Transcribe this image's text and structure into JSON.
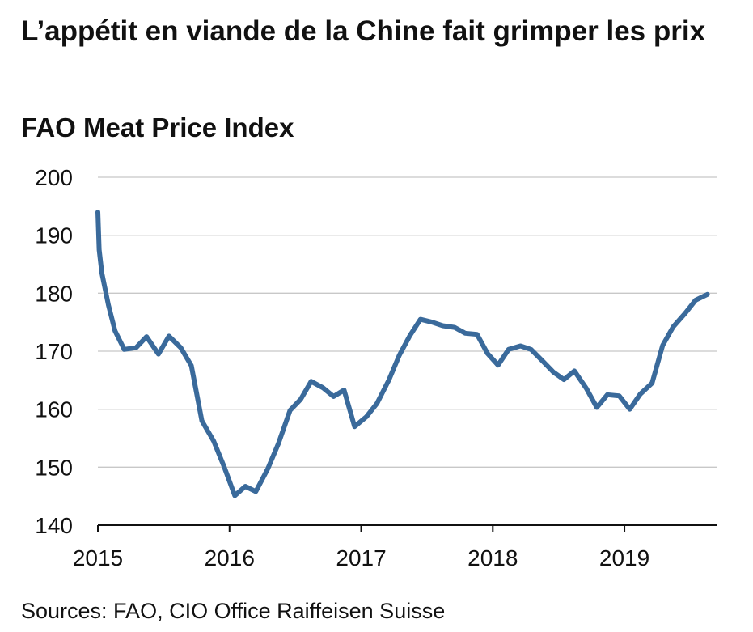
{
  "title": "L’appétit en viande de la Chine fait grimper les prix",
  "subtitle": "FAO Meat Price Index",
  "source": "Sources: FAO, CIO Office Raiffeisen Suisse",
  "chart_data": {
    "type": "line",
    "title": "L’appétit en viande de la Chine fait grimper les prix",
    "subtitle": "FAO Meat Price Index",
    "xlabel": "",
    "ylabel": "",
    "ylim": [
      140,
      200
    ],
    "yticks": [
      140,
      150,
      160,
      170,
      180,
      190,
      200
    ],
    "xlim": [
      2015,
      2019.7
    ],
    "xticks": [
      {
        "value": 2015,
        "label": "2015"
      },
      {
        "value": 2016,
        "label": "2016"
      },
      {
        "value": 2017,
        "label": "2017"
      },
      {
        "value": 2018,
        "label": "2018"
      },
      {
        "value": 2019,
        "label": "2019"
      }
    ],
    "grid": "horizontal",
    "legend": "none",
    "colors": {
      "line": "#3a6a9b",
      "grid": "#c8c8c8",
      "axis": "#111111"
    },
    "series": [
      {
        "points": [
          [
            2015.0,
            194.0
          ],
          [
            2015.01,
            187.5
          ],
          [
            2015.03,
            183.5
          ],
          [
            2015.08,
            178.0
          ],
          [
            2015.13,
            173.5
          ],
          [
            2015.2,
            170.3
          ],
          [
            2015.29,
            170.6
          ],
          [
            2015.37,
            172.5
          ],
          [
            2015.46,
            169.5
          ],
          [
            2015.54,
            172.6
          ],
          [
            2015.63,
            170.6
          ],
          [
            2015.71,
            167.5
          ],
          [
            2015.79,
            158.0
          ],
          [
            2015.88,
            154.5
          ],
          [
            2015.96,
            150.0
          ],
          [
            2016.04,
            145.1
          ],
          [
            2016.12,
            146.7
          ],
          [
            2016.2,
            145.8
          ],
          [
            2016.29,
            149.7
          ],
          [
            2016.37,
            154.0
          ],
          [
            2016.46,
            159.8
          ],
          [
            2016.54,
            161.7
          ],
          [
            2016.62,
            164.8
          ],
          [
            2016.71,
            163.7
          ],
          [
            2016.79,
            162.2
          ],
          [
            2016.87,
            163.3
          ],
          [
            2016.95,
            157.0
          ],
          [
            2017.04,
            158.7
          ],
          [
            2017.12,
            161.0
          ],
          [
            2017.21,
            165.0
          ],
          [
            2017.29,
            169.3
          ],
          [
            2017.37,
            172.7
          ],
          [
            2017.45,
            175.5
          ],
          [
            2017.54,
            175.0
          ],
          [
            2017.62,
            174.4
          ],
          [
            2017.71,
            174.1
          ],
          [
            2017.79,
            173.1
          ],
          [
            2017.88,
            172.9
          ],
          [
            2017.96,
            169.6
          ],
          [
            2018.04,
            167.6
          ],
          [
            2018.12,
            170.3
          ],
          [
            2018.21,
            170.9
          ],
          [
            2018.29,
            170.3
          ],
          [
            2018.37,
            168.5
          ],
          [
            2018.46,
            166.4
          ],
          [
            2018.54,
            165.1
          ],
          [
            2018.62,
            166.6
          ],
          [
            2018.71,
            163.6
          ],
          [
            2018.79,
            160.3
          ],
          [
            2018.87,
            162.5
          ],
          [
            2018.96,
            162.3
          ],
          [
            2019.04,
            160.0
          ],
          [
            2019.12,
            162.6
          ],
          [
            2019.21,
            164.5
          ],
          [
            2019.29,
            171.0
          ],
          [
            2019.37,
            174.2
          ],
          [
            2019.46,
            176.5
          ],
          [
            2019.54,
            178.8
          ],
          [
            2019.63,
            179.8
          ]
        ]
      }
    ]
  }
}
